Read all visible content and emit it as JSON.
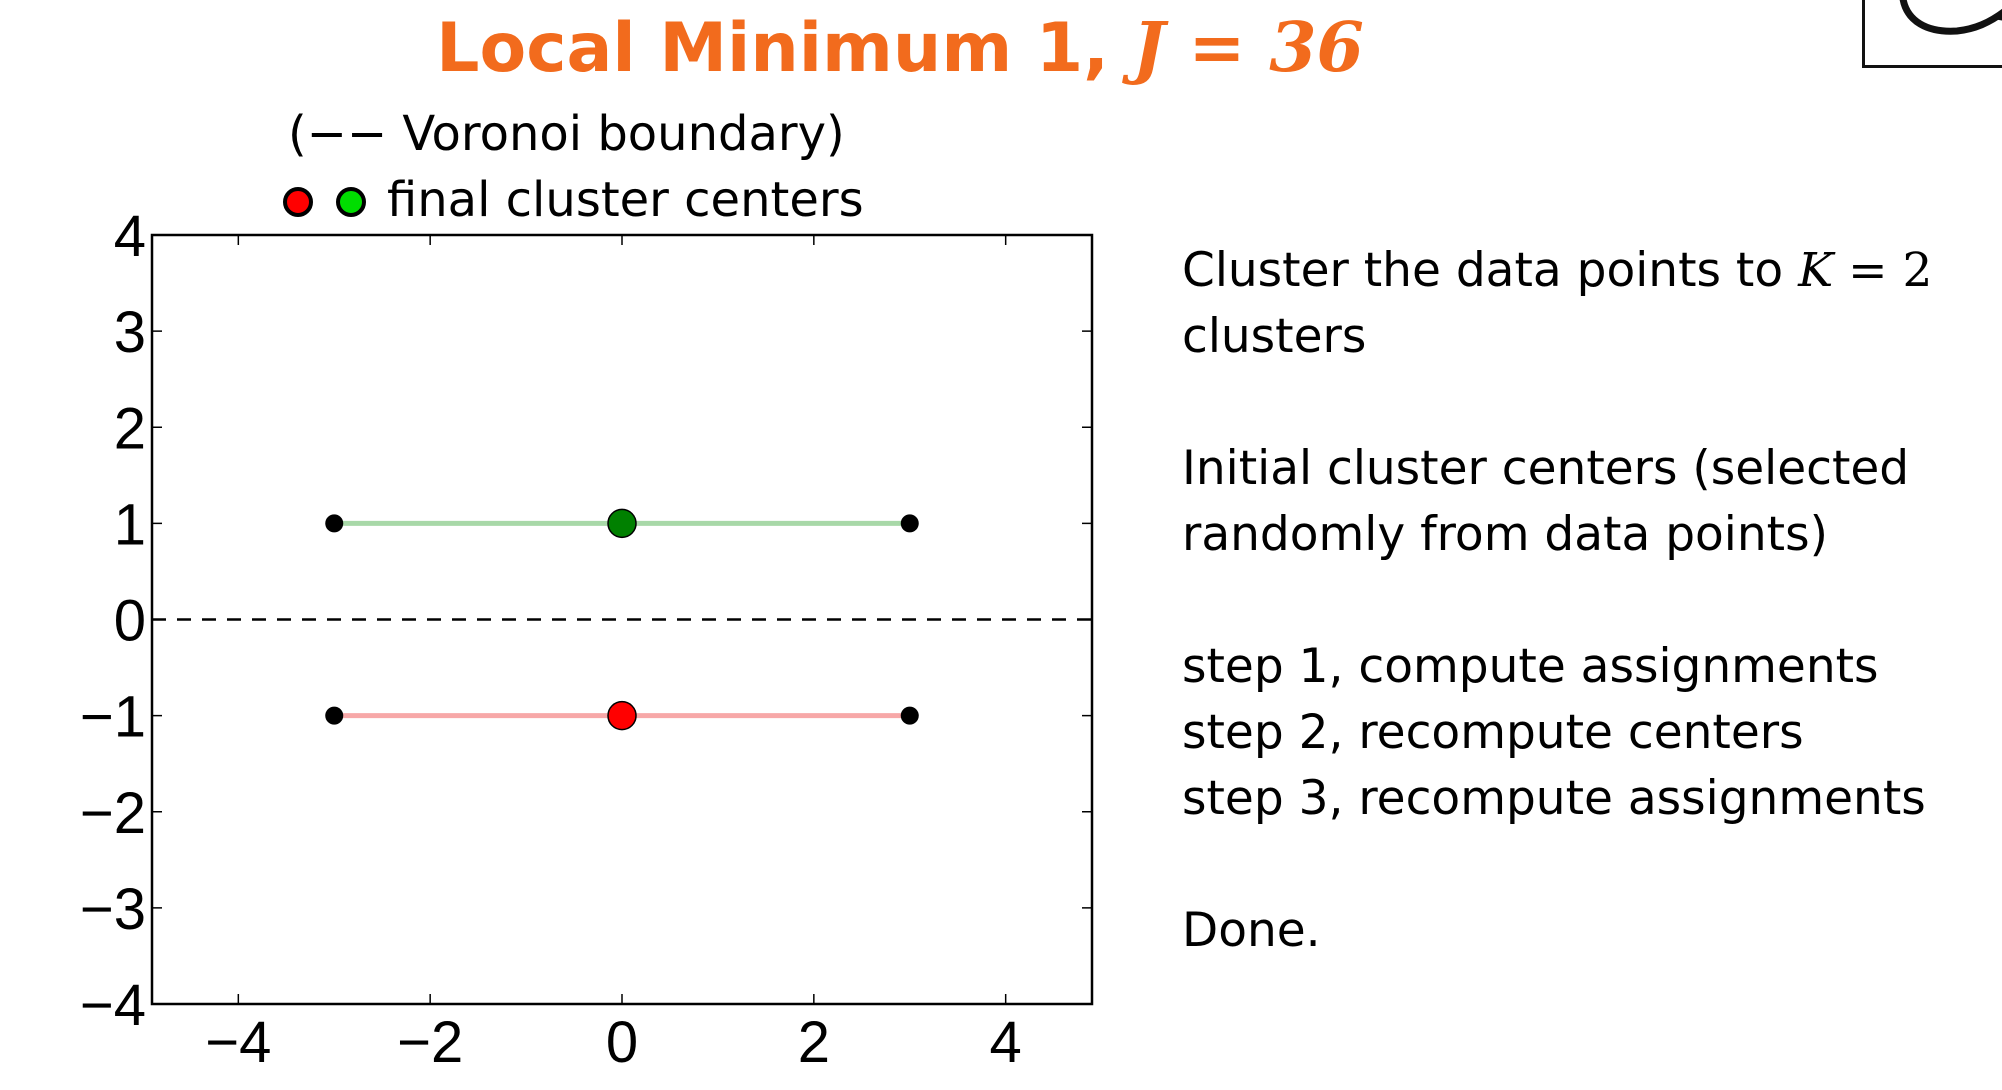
{
  "title": {
    "text": "Local Minimum 1, ",
    "variable": "J",
    "equals": " = ",
    "value": "36"
  },
  "colors": {
    "title": "#f26b1d",
    "cluster_red": "#ff0000",
    "cluster_green": "#008000",
    "legend_green": "#00dd00",
    "line_red": "#f7a8a8",
    "line_green": "#a8d8a8",
    "points": "#000000"
  },
  "chart_data": {
    "type": "scatter",
    "title": "",
    "xlabel": "",
    "ylabel": "",
    "xlim": [
      -4.9,
      4.9
    ],
    "ylim": [
      -4,
      4
    ],
    "xticks": [
      -4,
      -2,
      0,
      2,
      4
    ],
    "yticks": [
      -4,
      -3,
      -2,
      -1,
      0,
      1,
      2,
      3,
      4
    ],
    "xtick_labels": [
      "−4",
      "−2",
      "0",
      "2",
      "4"
    ],
    "ytick_labels": [
      "−4",
      "−3",
      "−2",
      "−1",
      "0",
      "1",
      "2",
      "3",
      "4"
    ],
    "grid": false,
    "legend": {
      "position": "top",
      "entries": [
        "(−− Voronoi boundary)",
        "final cluster centers"
      ]
    },
    "data_points": [
      {
        "x": -3,
        "y": 1,
        "cluster": "green"
      },
      {
        "x": 3,
        "y": 1,
        "cluster": "green"
      },
      {
        "x": -3,
        "y": -1,
        "cluster": "red"
      },
      {
        "x": 3,
        "y": -1,
        "cluster": "red"
      }
    ],
    "centers": [
      {
        "x": 0,
        "y": 1,
        "cluster": "green"
      },
      {
        "x": 0,
        "y": -1,
        "cluster": "red"
      }
    ],
    "assignment_lines": [
      {
        "from": [
          -3,
          1
        ],
        "to": [
          3,
          1
        ],
        "cluster": "green"
      },
      {
        "from": [
          -3,
          -1
        ],
        "to": [
          3,
          -1
        ],
        "cluster": "red"
      }
    ],
    "voronoi_boundary": {
      "y": 0,
      "style": "dashed"
    }
  },
  "panel": {
    "line1_before": "Cluster the data points to ",
    "line1_var": "K",
    "line1_eq": " = ",
    "line1_val": "2",
    "line2": "clusters",
    "line3": "Initial cluster centers (selected",
    "line4": "randomly from data points)",
    "step1": "step 1, compute assignments",
    "step2": "step 2, recompute centers",
    "step3": "step 3, recompute assignments",
    "done": "Done."
  }
}
